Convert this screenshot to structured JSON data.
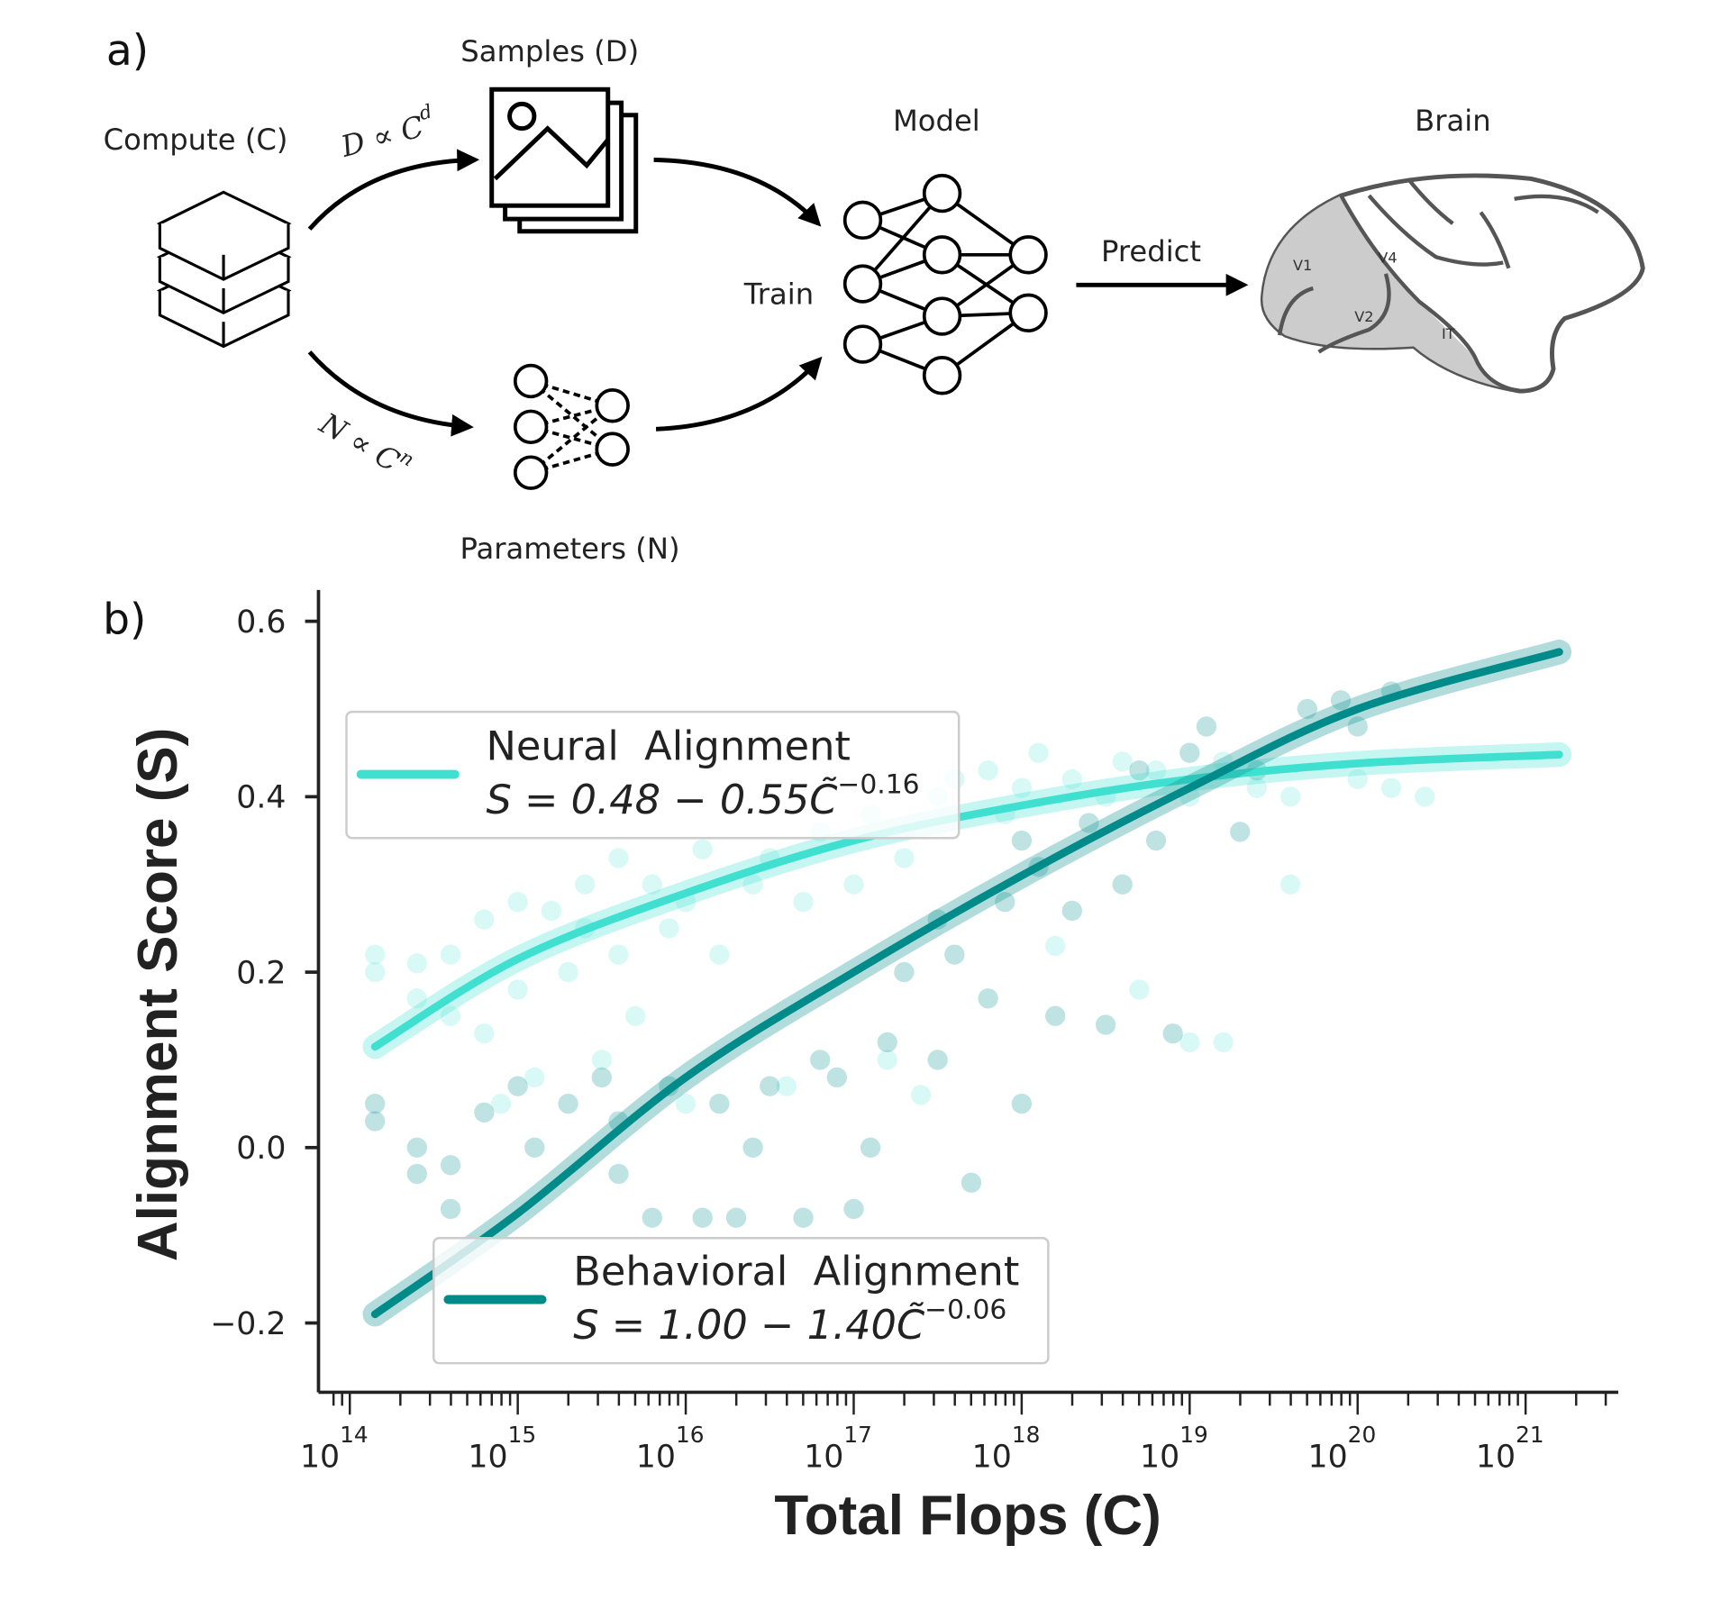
{
  "panel_a": {
    "label": "a)",
    "compute": "Compute (C)",
    "samples": "Samples (D)",
    "parameters": "Parameters (N)",
    "model": "Model",
    "brain": "Brain",
    "train": "Train",
    "predict": "Predict",
    "d_relation": "D ∝ C",
    "d_exp": "d",
    "n_relation": "N ∝ C",
    "n_exp": "n",
    "brain_regions": [
      "V1",
      "V4",
      "V2",
      "IT"
    ]
  },
  "colors": {
    "neural": "#40E0D0",
    "behavioral": "#008B8B"
  },
  "chart_data": {
    "type": "scatter",
    "panel_label": "b)",
    "xlabel": "Total Flops (C)",
    "ylabel": "Alignment Score (S)",
    "xscale": "log",
    "xlim_log10": [
      13.85,
      21.55
    ],
    "ylim": [
      -0.28,
      0.62
    ],
    "xticks": [
      {
        "base": "10",
        "exp": "14"
      },
      {
        "base": "10",
        "exp": "15"
      },
      {
        "base": "10",
        "exp": "16"
      },
      {
        "base": "10",
        "exp": "17"
      },
      {
        "base": "10",
        "exp": "18"
      },
      {
        "base": "10",
        "exp": "19"
      },
      {
        "base": "10",
        "exp": "20"
      },
      {
        "base": "10",
        "exp": "21"
      }
    ],
    "xtick_values_log10": [
      14,
      15,
      16,
      17,
      18,
      19,
      20,
      21
    ],
    "yticks": [
      "−0.2",
      "0.0",
      "0.2",
      "0.4",
      "0.6"
    ],
    "ytick_values": [
      -0.2,
      0.0,
      0.2,
      0.4,
      0.6
    ],
    "series": [
      {
        "name": "Neural  Alignment",
        "equation_lhs": "S = 0.48 − 0.55C̃",
        "equation_exp": "−0.16",
        "legend_position": "upper-left",
        "fit_log10x": [
          14.15,
          15,
          16,
          17,
          18,
          19,
          20,
          21.2
        ],
        "fit_y": [
          0.115,
          0.215,
          0.29,
          0.35,
          0.39,
          0.42,
          0.438,
          0.448
        ],
        "points": [
          [
            14.15,
            0.22
          ],
          [
            14.15,
            0.2
          ],
          [
            14.4,
            0.17
          ],
          [
            14.4,
            0.21
          ],
          [
            14.6,
            0.15
          ],
          [
            14.6,
            0.22
          ],
          [
            14.8,
            0.13
          ],
          [
            14.8,
            0.26
          ],
          [
            15,
            0.28
          ],
          [
            15,
            0.18
          ],
          [
            15.2,
            0.27
          ],
          [
            15.3,
            0.2
          ],
          [
            15.4,
            0.25
          ],
          [
            15.4,
            0.3
          ],
          [
            15.6,
            0.33
          ],
          [
            15.6,
            0.22
          ],
          [
            15.8,
            0.3
          ],
          [
            15.9,
            0.25
          ],
          [
            16,
            0.28
          ],
          [
            16.1,
            0.34
          ],
          [
            16.2,
            0.22
          ],
          [
            16.4,
            0.3
          ],
          [
            16.5,
            0.33
          ],
          [
            16.7,
            0.28
          ],
          [
            16.8,
            0.36
          ],
          [
            17,
            0.3
          ],
          [
            17.1,
            0.38
          ],
          [
            17.3,
            0.33
          ],
          [
            17.5,
            0.4
          ],
          [
            17.6,
            0.42
          ],
          [
            17.8,
            0.43
          ],
          [
            17.9,
            0.38
          ],
          [
            18,
            0.41
          ],
          [
            18.1,
            0.45
          ],
          [
            18.3,
            0.42
          ],
          [
            18.5,
            0.4
          ],
          [
            18.6,
            0.44
          ],
          [
            18.8,
            0.43
          ],
          [
            19,
            0.4
          ],
          [
            19.2,
            0.44
          ],
          [
            19.4,
            0.41
          ],
          [
            19.6,
            0.4
          ],
          [
            19.6,
            0.3
          ],
          [
            20,
            0.42
          ],
          [
            20.2,
            0.41
          ],
          [
            20.4,
            0.4
          ],
          [
            14.9,
            0.05
          ],
          [
            15.1,
            0.08
          ],
          [
            15.5,
            0.1
          ],
          [
            16.6,
            0.07
          ],
          [
            17.2,
            0.1
          ],
          [
            19,
            0.12
          ],
          [
            19.2,
            0.12
          ],
          [
            18.7,
            0.18
          ],
          [
            17.4,
            0.06
          ],
          [
            16,
            0.05
          ],
          [
            15.7,
            0.15
          ],
          [
            18.2,
            0.23
          ]
        ]
      },
      {
        "name": "Behavioral  Alignment",
        "equation_lhs": "S = 1.00 − 1.40C̃",
        "equation_exp": "−0.06",
        "legend_position": "lower-center",
        "fit_log10x": [
          14.15,
          15,
          16,
          17,
          18,
          19,
          20,
          21.2
        ],
        "fit_y": [
          -0.19,
          -0.075,
          0.08,
          0.2,
          0.31,
          0.41,
          0.5,
          0.565
        ],
        "points": [
          [
            14.15,
            0.05
          ],
          [
            14.15,
            0.03
          ],
          [
            14.4,
            0.0
          ],
          [
            14.4,
            -0.03
          ],
          [
            14.6,
            -0.07
          ],
          [
            14.6,
            -0.02
          ],
          [
            14.8,
            0.04
          ],
          [
            15,
            0.07
          ],
          [
            15.1,
            0.0
          ],
          [
            15.3,
            0.05
          ],
          [
            15.5,
            0.08
          ],
          [
            15.6,
            -0.03
          ],
          [
            15.8,
            -0.08
          ],
          [
            15.9,
            0.07
          ],
          [
            16.1,
            -0.08
          ],
          [
            16.2,
            0.05
          ],
          [
            16.3,
            -0.08
          ],
          [
            16.5,
            0.07
          ],
          [
            16.7,
            -0.08
          ],
          [
            16.8,
            0.1
          ],
          [
            16.9,
            0.08
          ],
          [
            17,
            -0.07
          ],
          [
            17.2,
            0.12
          ],
          [
            17.3,
            0.2
          ],
          [
            17.5,
            0.1
          ],
          [
            17.6,
            0.22
          ],
          [
            17.8,
            0.17
          ],
          [
            17.9,
            0.28
          ],
          [
            18,
            0.05
          ],
          [
            18.1,
            0.32
          ],
          [
            18.2,
            0.15
          ],
          [
            18.3,
            0.27
          ],
          [
            18.4,
            0.37
          ],
          [
            18.5,
            0.14
          ],
          [
            18.6,
            0.3
          ],
          [
            18.7,
            0.43
          ],
          [
            18.8,
            0.35
          ],
          [
            18.9,
            0.13
          ],
          [
            19,
            0.45
          ],
          [
            19.1,
            0.48
          ],
          [
            19.3,
            0.36
          ],
          [
            19.4,
            0.43
          ],
          [
            19.7,
            0.5
          ],
          [
            20,
            0.48
          ],
          [
            20.2,
            0.52
          ],
          [
            19.9,
            0.51
          ],
          [
            17.1,
            0.0
          ],
          [
            17.7,
            -0.04
          ],
          [
            16.4,
            0.0
          ],
          [
            15.6,
            0.03
          ],
          [
            18,
            0.35
          ],
          [
            17.5,
            0.26
          ]
        ]
      }
    ]
  }
}
